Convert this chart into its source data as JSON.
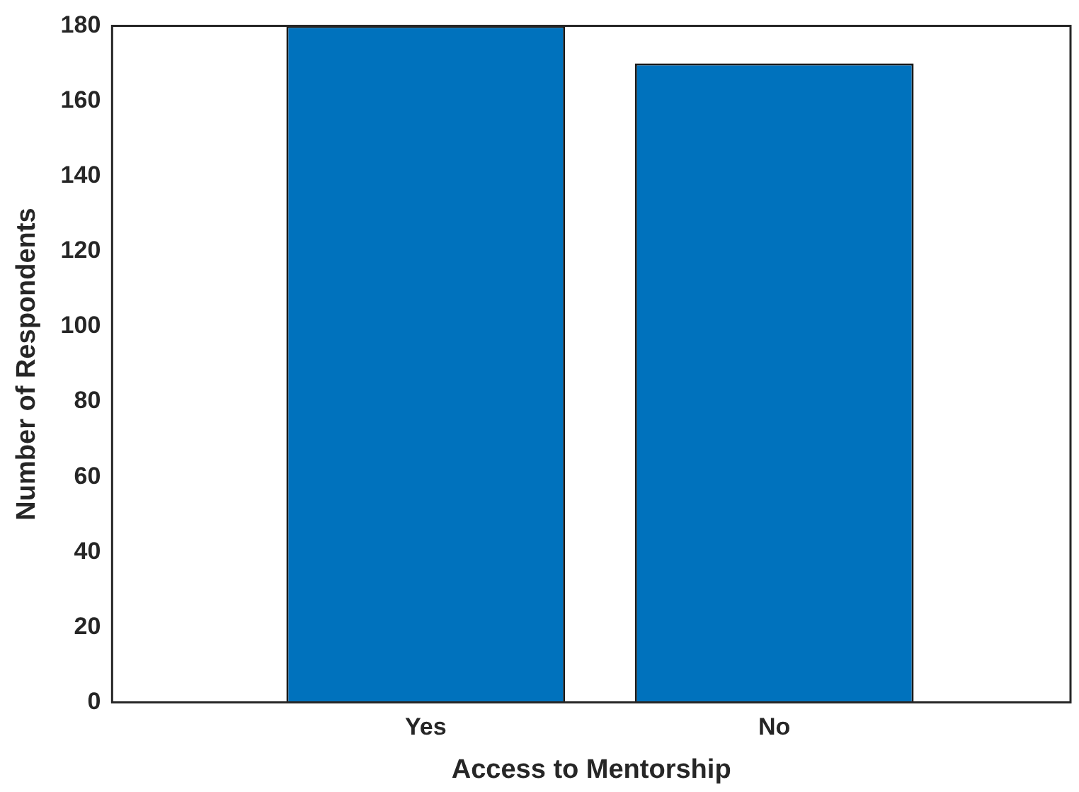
{
  "chart_data": {
    "type": "bar",
    "xlabel": "Access to Mentorship",
    "ylabel": "Number of Respondents",
    "categories": [
      "Yes",
      "No"
    ],
    "values": [
      180,
      170
    ],
    "color": "#0072bd",
    "ylim": [
      0,
      180
    ],
    "yticks": [
      0,
      20,
      40,
      60,
      80,
      100,
      120,
      140,
      160,
      180
    ],
    "grid": false,
    "legend": false
  }
}
